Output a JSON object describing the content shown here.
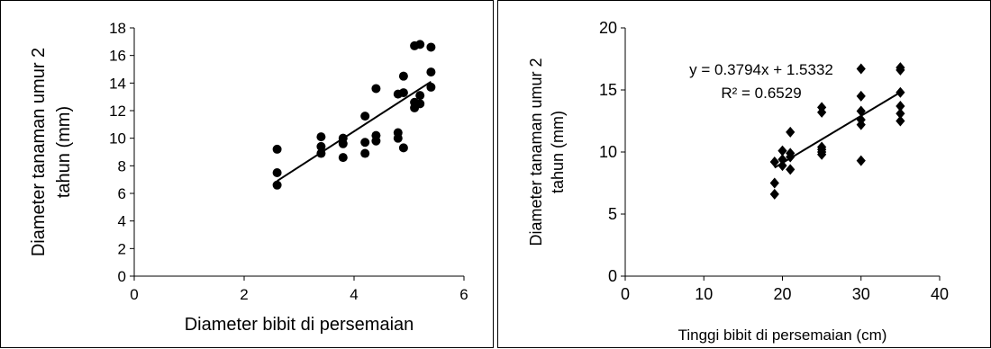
{
  "chart_data": [
    {
      "type": "scatter",
      "title": "",
      "xlabel": "Diameter bibit di persemaian",
      "ylabel_lines": [
        "Diameter tanaman umur 2",
        "tahun (mm)"
      ],
      "xlim": [
        0,
        6
      ],
      "ylim": [
        0,
        18
      ],
      "xticks": [
        0,
        2,
        4,
        6
      ],
      "yticks": [
        0,
        2,
        4,
        6,
        8,
        10,
        12,
        14,
        16,
        18
      ],
      "marker": "circle",
      "grid": false,
      "series": [
        {
          "points": [
            [
              2.6,
              9.2
            ],
            [
              2.6,
              7.5
            ],
            [
              2.6,
              6.6
            ],
            [
              3.4,
              10.1
            ],
            [
              3.4,
              9.4
            ],
            [
              3.4,
              8.9
            ],
            [
              3.8,
              10.0
            ],
            [
              3.8,
              9.6
            ],
            [
              3.8,
              8.6
            ],
            [
              4.2,
              11.6
            ],
            [
              4.2,
              9.7
            ],
            [
              4.2,
              8.9
            ],
            [
              4.4,
              13.6
            ],
            [
              4.4,
              10.2
            ],
            [
              4.4,
              9.8
            ],
            [
              4.8,
              13.2
            ],
            [
              4.8,
              10.4
            ],
            [
              4.8,
              10.0
            ],
            [
              4.9,
              14.5
            ],
            [
              4.9,
              13.3
            ],
            [
              4.9,
              9.3
            ],
            [
              5.1,
              16.7
            ],
            [
              5.1,
              12.6
            ],
            [
              5.1,
              12.2
            ],
            [
              5.2,
              16.8
            ],
            [
              5.2,
              13.1
            ],
            [
              5.2,
              12.5
            ],
            [
              5.4,
              16.6
            ],
            [
              5.4,
              14.8
            ],
            [
              5.4,
              13.7
            ]
          ]
        }
      ],
      "trendline": {
        "x": [
          2.6,
          5.4
        ],
        "y": [
          6.9,
          14.1
        ]
      }
    },
    {
      "type": "scatter",
      "title": "",
      "xlabel": "Tinggi bibit di persemaian (cm)",
      "ylabel_lines": [
        "Diameter tanaman umur 2",
        "tahun (mm)"
      ],
      "xlim": [
        0,
        40
      ],
      "ylim": [
        0,
        20
      ],
      "xticks": [
        0,
        10,
        20,
        30,
        40
      ],
      "yticks": [
        0,
        5,
        10,
        15,
        20
      ],
      "marker": "diamond",
      "grid": false,
      "annotation": [
        "y = 0.3794x + 1.5332",
        "R² = 0.6529"
      ],
      "series": [
        {
          "points": [
            [
              19,
              9.2
            ],
            [
              19,
              7.5
            ],
            [
              19,
              6.6
            ],
            [
              20,
              10.1
            ],
            [
              20,
              9.4
            ],
            [
              20,
              8.9
            ],
            [
              21,
              11.6
            ],
            [
              21,
              9.9
            ],
            [
              21,
              9.6
            ],
            [
              21,
              8.6
            ],
            [
              25,
              13.6
            ],
            [
              25,
              13.2
            ],
            [
              25,
              10.4
            ],
            [
              25,
              10.2
            ],
            [
              25,
              10.0
            ],
            [
              25,
              9.8
            ],
            [
              30,
              16.7
            ],
            [
              30,
              14.5
            ],
            [
              30,
              13.3
            ],
            [
              30,
              12.6
            ],
            [
              30,
              12.2
            ],
            [
              30,
              9.3
            ],
            [
              35,
              16.8
            ],
            [
              35,
              16.6
            ],
            [
              35,
              14.8
            ],
            [
              35,
              13.7
            ],
            [
              35,
              13.1
            ],
            [
              35,
              12.5
            ]
          ]
        }
      ],
      "trendline": {
        "x": [
          19,
          35
        ],
        "y": [
          8.74,
          14.81
        ]
      }
    }
  ]
}
